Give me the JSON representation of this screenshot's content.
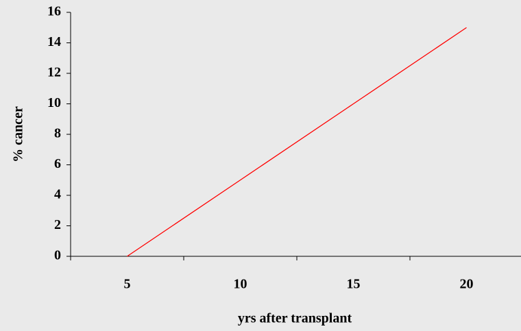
{
  "chart_data": {
    "type": "line",
    "x_label": "yrs after transplant",
    "y_label": "% cancer",
    "categories": [
      "5",
      "10",
      "15",
      "20"
    ],
    "series": [
      {
        "name": "% cancer",
        "color": "#ff0000",
        "values": [
          0,
          5,
          10,
          15
        ]
      }
    ],
    "ylim": [
      0,
      16
    ],
    "yticks": [
      0,
      2,
      4,
      6,
      8,
      10,
      12,
      14,
      16
    ],
    "grid": false
  }
}
